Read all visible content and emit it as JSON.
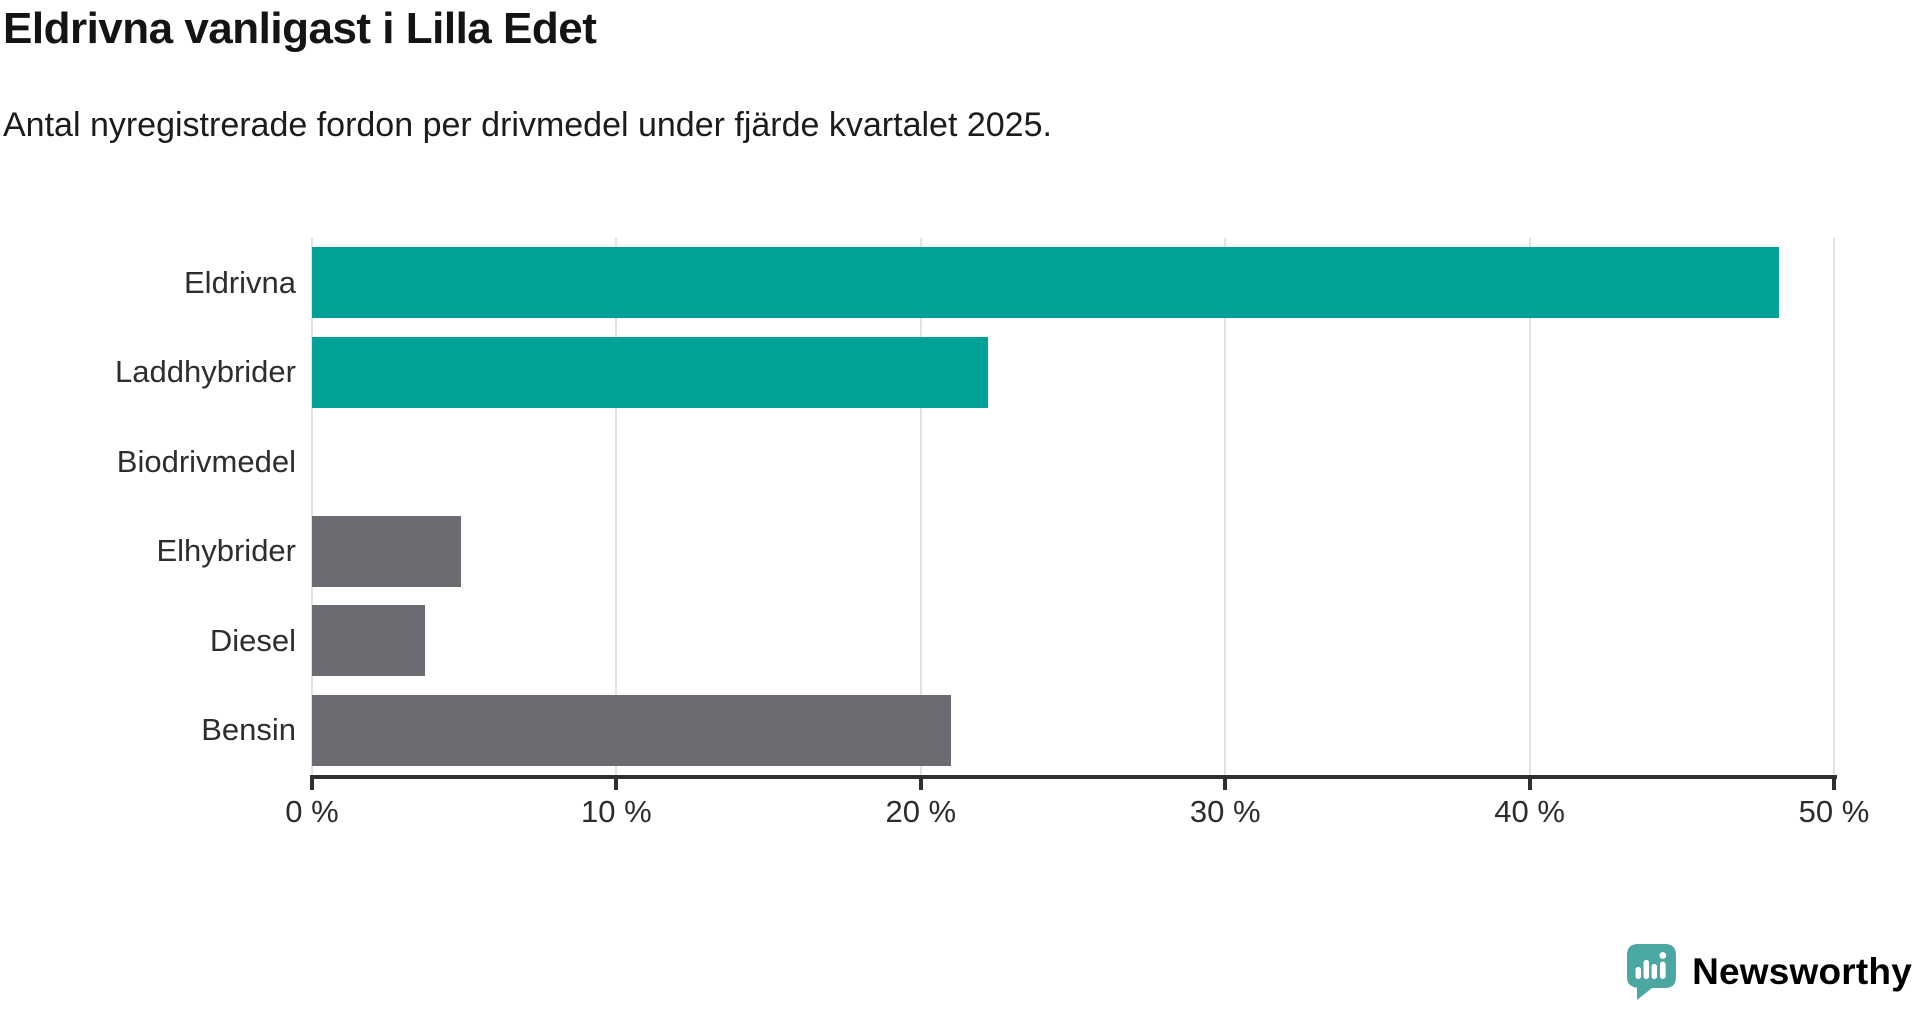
{
  "header": {
    "title": "Eldrivna vanligast i Lilla Edet",
    "subtitle": "Antal nyregistrerade fordon per drivmedel under fjärde kvartalet 2025."
  },
  "colors": {
    "teal_bar": "#00a196",
    "gray_bar": "#6c6b72",
    "gridline": "#e2e2e2",
    "axis": "#2f2f2f",
    "label_text": "#2e2e2e",
    "logo_teal": "#4ba7a2"
  },
  "chart_data": {
    "type": "bar",
    "orientation": "horizontal",
    "title": "Eldrivna vanligast i Lilla Edet",
    "subtitle": "Antal nyregistrerade fordon per drivmedel under fjärde kvartalet 2025.",
    "categories": [
      "Eldrivna",
      "Laddhybrider",
      "Biodrivmedel",
      "Elhybrider",
      "Diesel",
      "Bensin"
    ],
    "values": [
      48.2,
      22.2,
      0,
      4.9,
      3.7,
      21.0
    ],
    "unit": "%",
    "bar_colors": [
      "#00a196",
      "#00a196",
      "#00a196",
      "#6c6b72",
      "#6c6b72",
      "#6c6b72"
    ],
    "xlim": [
      0,
      50
    ],
    "x_ticks": [
      0,
      10,
      20,
      30,
      40,
      50
    ],
    "x_tick_labels": [
      "0 %",
      "10 %",
      "20 %",
      "30 %",
      "40 %",
      "50 %"
    ],
    "grid": "vertical-gridlines-on",
    "legend": "none"
  },
  "logo": {
    "text": "Newsworthy",
    "icon": "newsworthy-speech-bubble-bar-chart-icon"
  }
}
